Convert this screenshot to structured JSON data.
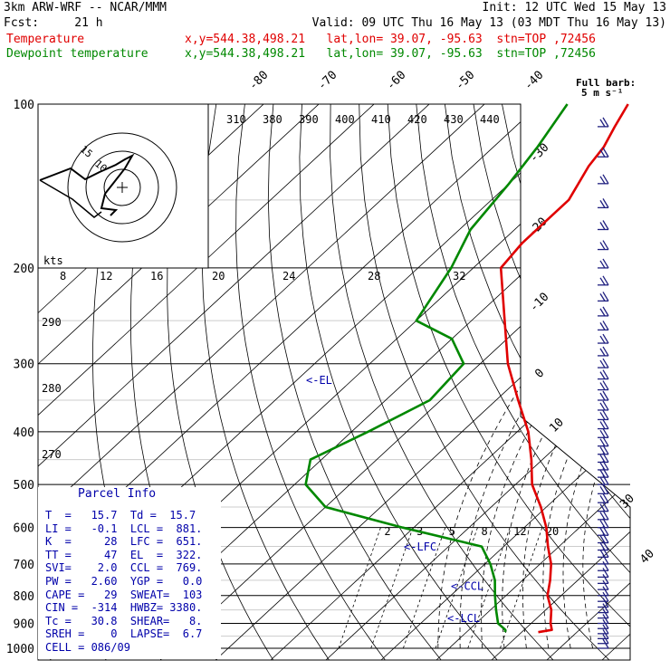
{
  "header": {
    "line1_left": "3km ARW-WRF -- NCAR/MMM",
    "line1_right": "Init: 12 UTC Wed 15 May 13",
    "line2_fcst": "Fcst:     21 h",
    "line2_valid": "Valid: 09 UTC Thu 16 May 13 (03 MDT Thu 16 May 13)",
    "temp_label": "Temperature",
    "temp_info": "x,y=544.38,498.21   lat,lon= 39.07, -95.63  stn=TOP ,72456",
    "dew_label": "Dewpoint temperature",
    "dew_info": "x,y=544.38,498.21   lat,lon= 39.07, -95.63  stn=TOP ,72456"
  },
  "barb_legend": {
    "line1": "Full barb:",
    "line2": "5 m s⁻¹"
  },
  "colors": {
    "temperature": "#e00000",
    "dewpoint": "#008800",
    "annotation": "#0000aa",
    "grid": "#000000"
  },
  "chart_data": {
    "type": "line",
    "subtype": "skew-T log-p sounding",
    "pressure_levels": [
      "100",
      "200",
      "300",
      "400",
      "500",
      "600",
      "700",
      "800",
      "900",
      "1000"
    ],
    "pressure_ticks": [
      100,
      200,
      300,
      400,
      500,
      600,
      700,
      800,
      900,
      1000
    ],
    "isotherm_labels_top": [
      "-80",
      "-70",
      "-60",
      "-50",
      "-40"
    ],
    "isotherm_labels_right": [
      "-30",
      "-20",
      "-10",
      "0",
      "10",
      "20",
      "30",
      "40"
    ],
    "theta_e_labels": [
      "310",
      "380",
      "390",
      "400",
      "410",
      "420",
      "430",
      "440"
    ],
    "theta_labels_left": [
      "290",
      "280",
      "270"
    ],
    "mixing_ratio_labels": [
      "2",
      "3",
      "5",
      "8",
      "12",
      "20"
    ],
    "hodograph": {
      "units": "kts",
      "speed_labels": [
        "8",
        "12",
        "16",
        "20",
        "24",
        "28",
        "32"
      ],
      "ring_labels": [
        "15",
        "10"
      ]
    },
    "series": [
      {
        "name": "Temperature",
        "color": "#e00000",
        "points": [
          {
            "p": 934,
            "t": 23
          },
          {
            "p": 925,
            "t": 25
          },
          {
            "p": 900,
            "t": 23.5
          },
          {
            "p": 850,
            "t": 21
          },
          {
            "p": 800,
            "t": 17.5
          },
          {
            "p": 750,
            "t": 15
          },
          {
            "p": 700,
            "t": 12
          },
          {
            "p": 650,
            "t": 8
          },
          {
            "p": 600,
            "t": 4
          },
          {
            "p": 550,
            "t": -1
          },
          {
            "p": 500,
            "t": -7
          },
          {
            "p": 450,
            "t": -12
          },
          {
            "p": 400,
            "t": -18
          },
          {
            "p": 350,
            "t": -26
          },
          {
            "p": 300,
            "t": -35
          },
          {
            "p": 250,
            "t": -44
          },
          {
            "p": 200,
            "t": -55
          },
          {
            "p": 180,
            "t": -56
          },
          {
            "p": 150,
            "t": -56
          },
          {
            "p": 130,
            "t": -59
          },
          {
            "p": 120,
            "t": -60
          },
          {
            "p": 110,
            "t": -62
          },
          {
            "p": 100,
            "t": -64
          }
        ]
      },
      {
        "name": "Dewpoint temperature",
        "color": "#008800",
        "points": [
          {
            "p": 934,
            "t": 17
          },
          {
            "p": 925,
            "t": 16.6
          },
          {
            "p": 900,
            "t": 14
          },
          {
            "p": 850,
            "t": 11
          },
          {
            "p": 800,
            "t": 8
          },
          {
            "p": 750,
            "t": 5
          },
          {
            "p": 700,
            "t": 1
          },
          {
            "p": 650,
            "t": -4
          },
          {
            "p": 600,
            "t": -22
          },
          {
            "p": 550,
            "t": -40
          },
          {
            "p": 500,
            "t": -48
          },
          {
            "p": 450,
            "t": -52
          },
          {
            "p": 400,
            "t": -47
          },
          {
            "p": 350,
            "t": -42
          },
          {
            "p": 300,
            "t": -43
          },
          {
            "p": 270,
            "t": -50
          },
          {
            "p": 250,
            "t": -60
          },
          {
            "p": 200,
            "t": -64
          },
          {
            "p": 170,
            "t": -68
          },
          {
            "p": 140,
            "t": -70
          },
          {
            "p": 120,
            "t": -72
          },
          {
            "p": 100,
            "t": -75
          }
        ]
      }
    ],
    "annotations": [
      {
        "label": "<-EL",
        "p": 322
      },
      {
        "label": "<-LFC",
        "p": 651
      },
      {
        "label": "<-CCL",
        "p": 769
      },
      {
        "label": "<-LCL",
        "p": 881
      }
    ],
    "wind_speed_labels_right": [
      "30",
      "40"
    ]
  },
  "parcel_info": {
    "title": "Parcel Info",
    "rows": [
      "T  =   15.7  Td =  15.7",
      "LI =   -0.1  LCL =  881.",
      "K  =     28  LFC =  651.",
      "TT =     47  EL  =  322.",
      "SVI=    2.0  CCL =  769.",
      "PW =   2.60  YGP =   0.0",
      "CAPE =   29  SWEAT=  103",
      "CIN =  -314  HWBZ= 3380.",
      "Tc =   30.8  SHEAR=   8.",
      "SREH =    0  LAPSE=  6.7",
      "CELL = 086/09"
    ]
  }
}
